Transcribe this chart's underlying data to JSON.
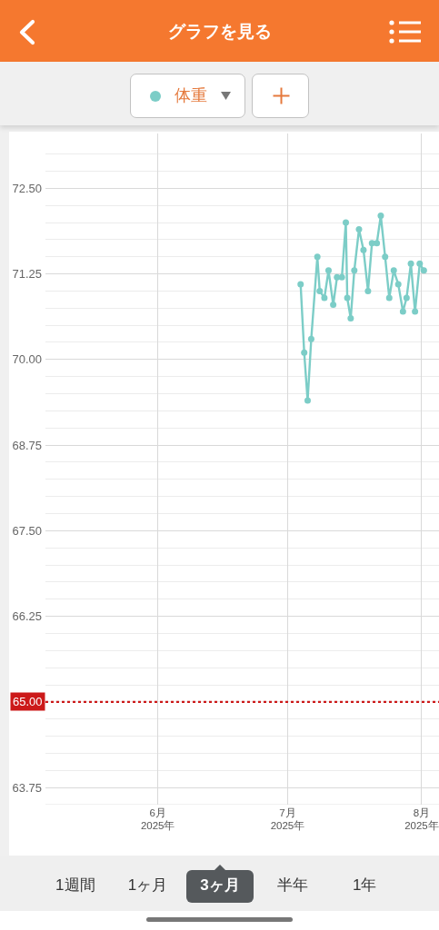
{
  "chart_data": {
    "type": "line",
    "title": "グラフを見る",
    "annotations": [
      "1週間",
      "1ヶ月",
      "3ヶ月",
      "半年",
      "1年"
    ],
    "x": [
      "2025-07-04T00:00",
      "2025-07-04T20:00",
      "2025-07-05T15:00",
      "2025-07-06T11:00",
      "2025-07-07T21:00",
      "2025-07-08T10:00",
      "2025-07-09T12:00",
      "2025-07-10T11:00",
      "2025-07-11T13:00",
      "2025-07-12T10:00",
      "2025-07-13T13:00",
      "2025-07-14T11:00",
      "2025-07-14T19:00",
      "2025-07-15T14:00",
      "2025-07-16T10:00",
      "2025-07-17T12:00",
      "2025-07-18T13:00",
      "2025-07-19T14:00",
      "2025-07-20T12:00",
      "2025-07-21T15:00",
      "2025-07-22T13:00",
      "2025-07-23T13:00",
      "2025-07-24T12:00",
      "2025-07-25T13:00",
      "2025-07-26T14:00",
      "2025-07-27T16:00",
      "2025-07-28T12:00",
      "2025-07-29T12:00",
      "2025-07-30T11:00",
      "2025-07-31T13:00",
      "2025-08-01T12:00"
    ],
    "series": [
      {
        "name": "体重",
        "color": "#7ccdc7",
        "values": [
          71.1,
          70.1,
          69.4,
          70.3,
          71.5,
          71.0,
          70.9,
          71.3,
          70.8,
          71.2,
          71.2,
          72.0,
          70.9,
          70.6,
          71.3,
          71.9,
          71.6,
          71.0,
          71.7,
          71.7,
          72.1,
          71.5,
          70.9,
          71.3,
          71.1,
          70.7,
          70.9,
          71.4,
          70.7,
          71.4,
          71.3
        ]
      }
    ],
    "xlim": [
      "2025-05-06",
      "2025-08-05"
    ],
    "xticks": [
      {
        "value": "2025-06-01",
        "label": "6月\n2025年"
      },
      {
        "value": "2025-07-01",
        "label": "7月\n2025年"
      },
      {
        "value": "2025-08-01",
        "label": "8月\n2025年"
      }
    ],
    "ylim": [
      63.5,
      73.3
    ],
    "yticks": [
      {
        "value": 63.5,
        "label": null
      },
      63.75,
      {
        "value": 64,
        "label": null
      },
      {
        "value": 64.25,
        "label": null
      },
      {
        "value": 64.5,
        "label": null
      },
      {
        "value": 64.75,
        "label": null
      },
      {
        "value": 65,
        "label": null
      },
      {
        "value": 65.25,
        "label": null
      },
      {
        "value": 65.5,
        "label": null
      },
      {
        "value": 65.75,
        "label": null
      },
      {
        "value": 66,
        "label": null
      },
      66.25,
      {
        "value": 66.5,
        "label": null
      },
      {
        "value": 66.75,
        "label": null
      },
      {
        "value": 67,
        "label": null
      },
      {
        "value": 67.25,
        "label": null
      },
      {
        "value": 67.5,
        "label": "67.50"
      },
      {
        "value": 67.75,
        "label": null
      },
      {
        "value": 68,
        "label": null
      },
      {
        "value": 68.25,
        "label": null
      },
      {
        "value": 68.5,
        "label": null
      },
      68.75,
      {
        "value": 69,
        "label": null
      },
      {
        "value": 69.25,
        "label": null
      },
      {
        "value": 69.5,
        "label": null
      },
      {
        "value": 69.75,
        "label": null
      },
      {
        "value": 70,
        "label": "70.00"
      },
      {
        "value": 70.25,
        "label": null
      },
      {
        "value": 70.5,
        "label": null
      },
      {
        "value": 70.75,
        "label": null
      },
      {
        "value": 71,
        "label": null
      },
      71.25,
      {
        "value": 71.5,
        "label": null
      },
      {
        "value": 71.75,
        "label": null
      },
      {
        "value": 72,
        "label": null
      },
      {
        "value": 72.25,
        "label": null
      },
      {
        "value": 72.5,
        "label": "72.50"
      },
      {
        "value": 72.75,
        "label": null
      },
      {
        "value": 73,
        "label": null
      }
    ],
    "ref_lines": [
      {
        "axis": "y",
        "value": 65,
        "label": "65.00",
        "color": "#cc1a1a",
        "line_style": "dotted"
      }
    ],
    "grid": true,
    "legend": "top",
    "marker": "circle",
    "line_style": "solid"
  }
}
